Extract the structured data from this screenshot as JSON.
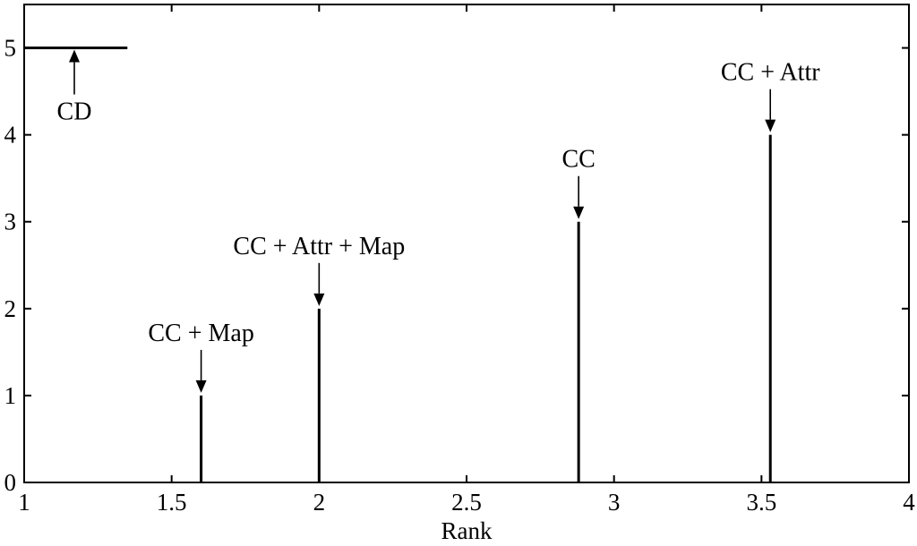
{
  "chart_data": {
    "type": "bar",
    "title": "",
    "xlabel": "Rank",
    "ylabel": "",
    "xlim": [
      1,
      4
    ],
    "ylim": [
      0,
      5.5
    ],
    "xticks": [
      "1",
      "1.5",
      "2",
      "2.5",
      "3",
      "3.5",
      "4"
    ],
    "yticks": [
      "0",
      "1",
      "2",
      "3",
      "4",
      "5"
    ],
    "grid": false,
    "series": [
      {
        "label": "CD",
        "x_start": 1.0,
        "x_end": 1.35,
        "y": 5,
        "kind": "hline"
      },
      {
        "label": "CC + Map",
        "x": 1.6,
        "y": 1,
        "kind": "stem"
      },
      {
        "label": "CC + Attr + Map",
        "x": 2.0,
        "y": 2,
        "kind": "stem"
      },
      {
        "label": "CC",
        "x": 2.88,
        "y": 3,
        "kind": "stem"
      },
      {
        "label": "CC + Attr",
        "x": 3.53,
        "y": 4,
        "kind": "stem"
      }
    ]
  }
}
